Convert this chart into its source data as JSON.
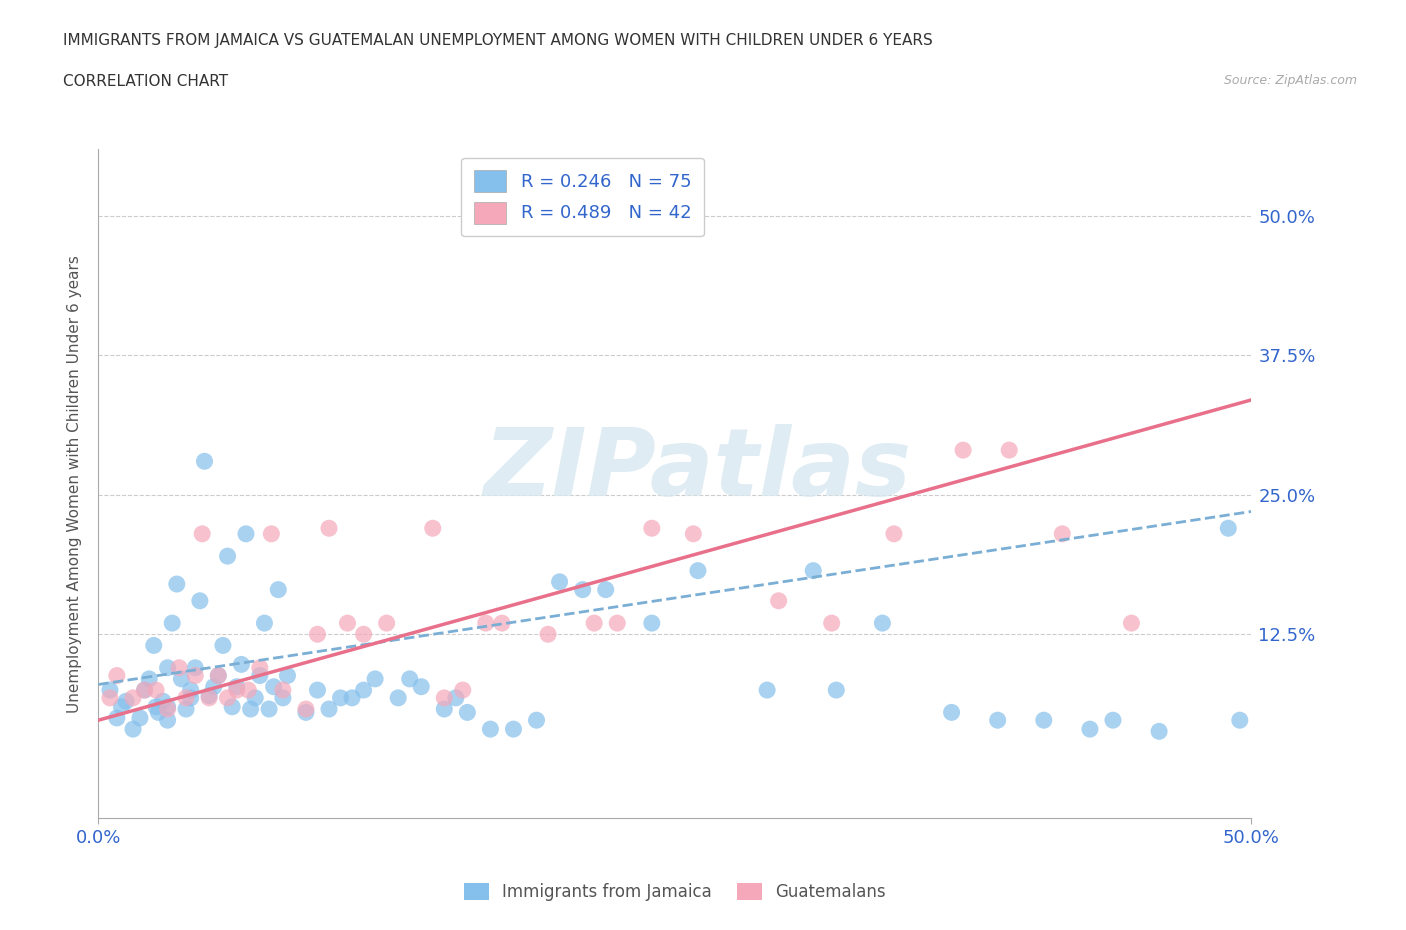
{
  "title_line1": "IMMIGRANTS FROM JAMAICA VS GUATEMALAN UNEMPLOYMENT AMONG WOMEN WITH CHILDREN UNDER 6 YEARS",
  "title_line2": "CORRELATION CHART",
  "source": "Source: ZipAtlas.com",
  "ylabel": "Unemployment Among Women with Children Under 6 years",
  "xmin": 0.0,
  "xmax": 0.5,
  "ymin": -0.04,
  "ymax": 0.56,
  "yticks": [
    0.0,
    0.125,
    0.25,
    0.375,
    0.5
  ],
  "ytick_labels": [
    "",
    "12.5%",
    "25.0%",
    "37.5%",
    "50.0%"
  ],
  "xticks": [
    0.0,
    0.5
  ],
  "xtick_labels": [
    "0.0%",
    "50.0%"
  ],
  "blue_color": "#85BFEC",
  "pink_color": "#F4A8BA",
  "blue_trend_color": "#7AAED4",
  "pink_trend_color": "#E8708A",
  "blue_scatter_x": [
    0.005,
    0.008,
    0.01,
    0.012,
    0.015,
    0.018,
    0.02,
    0.022,
    0.024,
    0.025,
    0.026,
    0.028,
    0.03,
    0.03,
    0.03,
    0.032,
    0.034,
    0.036,
    0.038,
    0.04,
    0.04,
    0.042,
    0.044,
    0.046,
    0.048,
    0.05,
    0.052,
    0.054,
    0.056,
    0.058,
    0.06,
    0.062,
    0.064,
    0.066,
    0.068,
    0.07,
    0.072,
    0.074,
    0.076,
    0.078,
    0.08,
    0.082,
    0.09,
    0.095,
    0.1,
    0.105,
    0.11,
    0.115,
    0.12,
    0.13,
    0.135,
    0.14,
    0.15,
    0.155,
    0.16,
    0.17,
    0.18,
    0.19,
    0.2,
    0.21,
    0.22,
    0.24,
    0.26,
    0.29,
    0.31,
    0.32,
    0.34,
    0.37,
    0.39,
    0.41,
    0.43,
    0.44,
    0.46,
    0.49,
    0.495
  ],
  "blue_scatter_y": [
    0.075,
    0.05,
    0.06,
    0.065,
    0.04,
    0.05,
    0.075,
    0.085,
    0.115,
    0.06,
    0.055,
    0.065,
    0.048,
    0.06,
    0.095,
    0.135,
    0.17,
    0.085,
    0.058,
    0.068,
    0.075,
    0.095,
    0.155,
    0.28,
    0.07,
    0.078,
    0.088,
    0.115,
    0.195,
    0.06,
    0.078,
    0.098,
    0.215,
    0.058,
    0.068,
    0.088,
    0.135,
    0.058,
    0.078,
    0.165,
    0.068,
    0.088,
    0.055,
    0.075,
    0.058,
    0.068,
    0.068,
    0.075,
    0.085,
    0.068,
    0.085,
    0.078,
    0.058,
    0.068,
    0.055,
    0.04,
    0.04,
    0.048,
    0.172,
    0.165,
    0.165,
    0.135,
    0.182,
    0.075,
    0.182,
    0.075,
    0.135,
    0.055,
    0.048,
    0.048,
    0.04,
    0.048,
    0.038,
    0.22,
    0.048
  ],
  "pink_scatter_x": [
    0.005,
    0.008,
    0.015,
    0.02,
    0.025,
    0.03,
    0.035,
    0.038,
    0.042,
    0.045,
    0.048,
    0.052,
    0.056,
    0.06,
    0.065,
    0.07,
    0.075,
    0.08,
    0.09,
    0.095,
    0.1,
    0.108,
    0.115,
    0.125,
    0.145,
    0.15,
    0.158,
    0.168,
    0.175,
    0.195,
    0.215,
    0.225,
    0.24,
    0.258,
    0.295,
    0.318,
    0.345,
    0.375,
    0.395,
    0.418,
    0.448,
    0.2
  ],
  "pink_scatter_y": [
    0.068,
    0.088,
    0.068,
    0.075,
    0.075,
    0.058,
    0.095,
    0.068,
    0.088,
    0.215,
    0.068,
    0.088,
    0.068,
    0.075,
    0.075,
    0.095,
    0.215,
    0.075,
    0.058,
    0.125,
    0.22,
    0.135,
    0.125,
    0.135,
    0.22,
    0.068,
    0.075,
    0.135,
    0.135,
    0.125,
    0.135,
    0.135,
    0.22,
    0.215,
    0.155,
    0.135,
    0.215,
    0.29,
    0.29,
    0.215,
    0.135,
    0.505
  ],
  "blue_trend_x_start": 0.0,
  "blue_trend_x_end": 0.5,
  "blue_trend_y_start": 0.08,
  "blue_trend_y_end": 0.235,
  "pink_trend_x_start": 0.0,
  "pink_trend_x_end": 0.5,
  "pink_trend_y_start": 0.048,
  "pink_trend_y_end": 0.335,
  "grid_color": "#CCCCCC",
  "background_color": "#FFFFFF",
  "legend_blue_label": "R = 0.246   N = 75",
  "legend_pink_label": "R = 0.489   N = 42",
  "bottom_legend_blue": "Immigrants from Jamaica",
  "bottom_legend_pink": "Guatemalans"
}
